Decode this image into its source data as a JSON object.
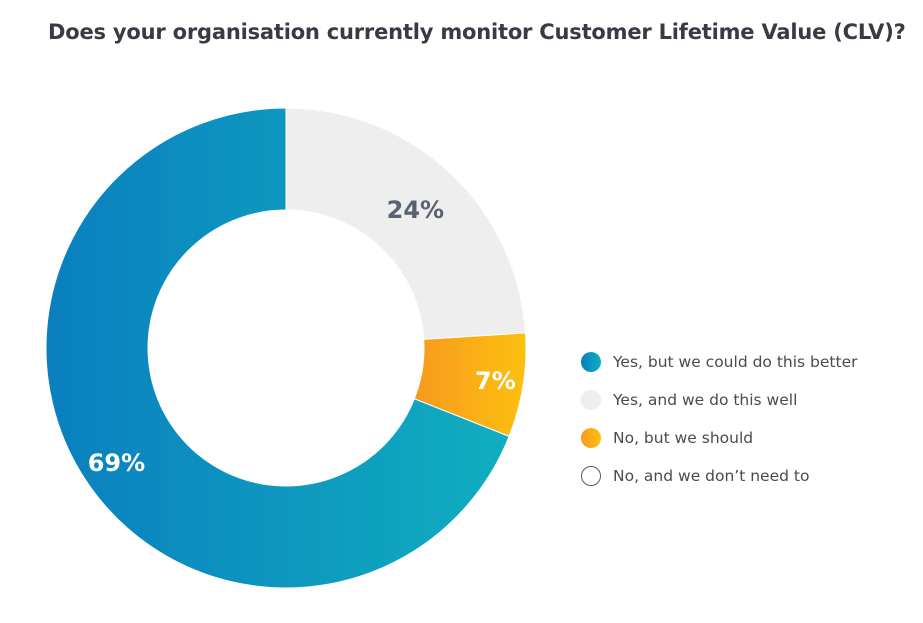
{
  "chart_data": {
    "type": "pie",
    "title": "Does your organisation currently monitor Customer Lifetime Value (CLV)?",
    "donut": true,
    "legend_position": "right",
    "series": [
      {
        "name": "Yes, but we could do this better",
        "value": 69,
        "label": "69%",
        "color": "#0a8ec4",
        "label_color": "#ffffff"
      },
      {
        "name": "Yes, and we do this well",
        "value": 24,
        "label": "24%",
        "color": "#eeeeee",
        "label_color": "#5a6270"
      },
      {
        "name": "No, but we should",
        "value": 7,
        "label": "7%",
        "color": "#fbb217",
        "label_color": "#ffffff"
      },
      {
        "name": "No, and we don’t need to",
        "value": 0,
        "label": "",
        "color": "#ffffff",
        "label_color": "#5a6270"
      }
    ]
  }
}
